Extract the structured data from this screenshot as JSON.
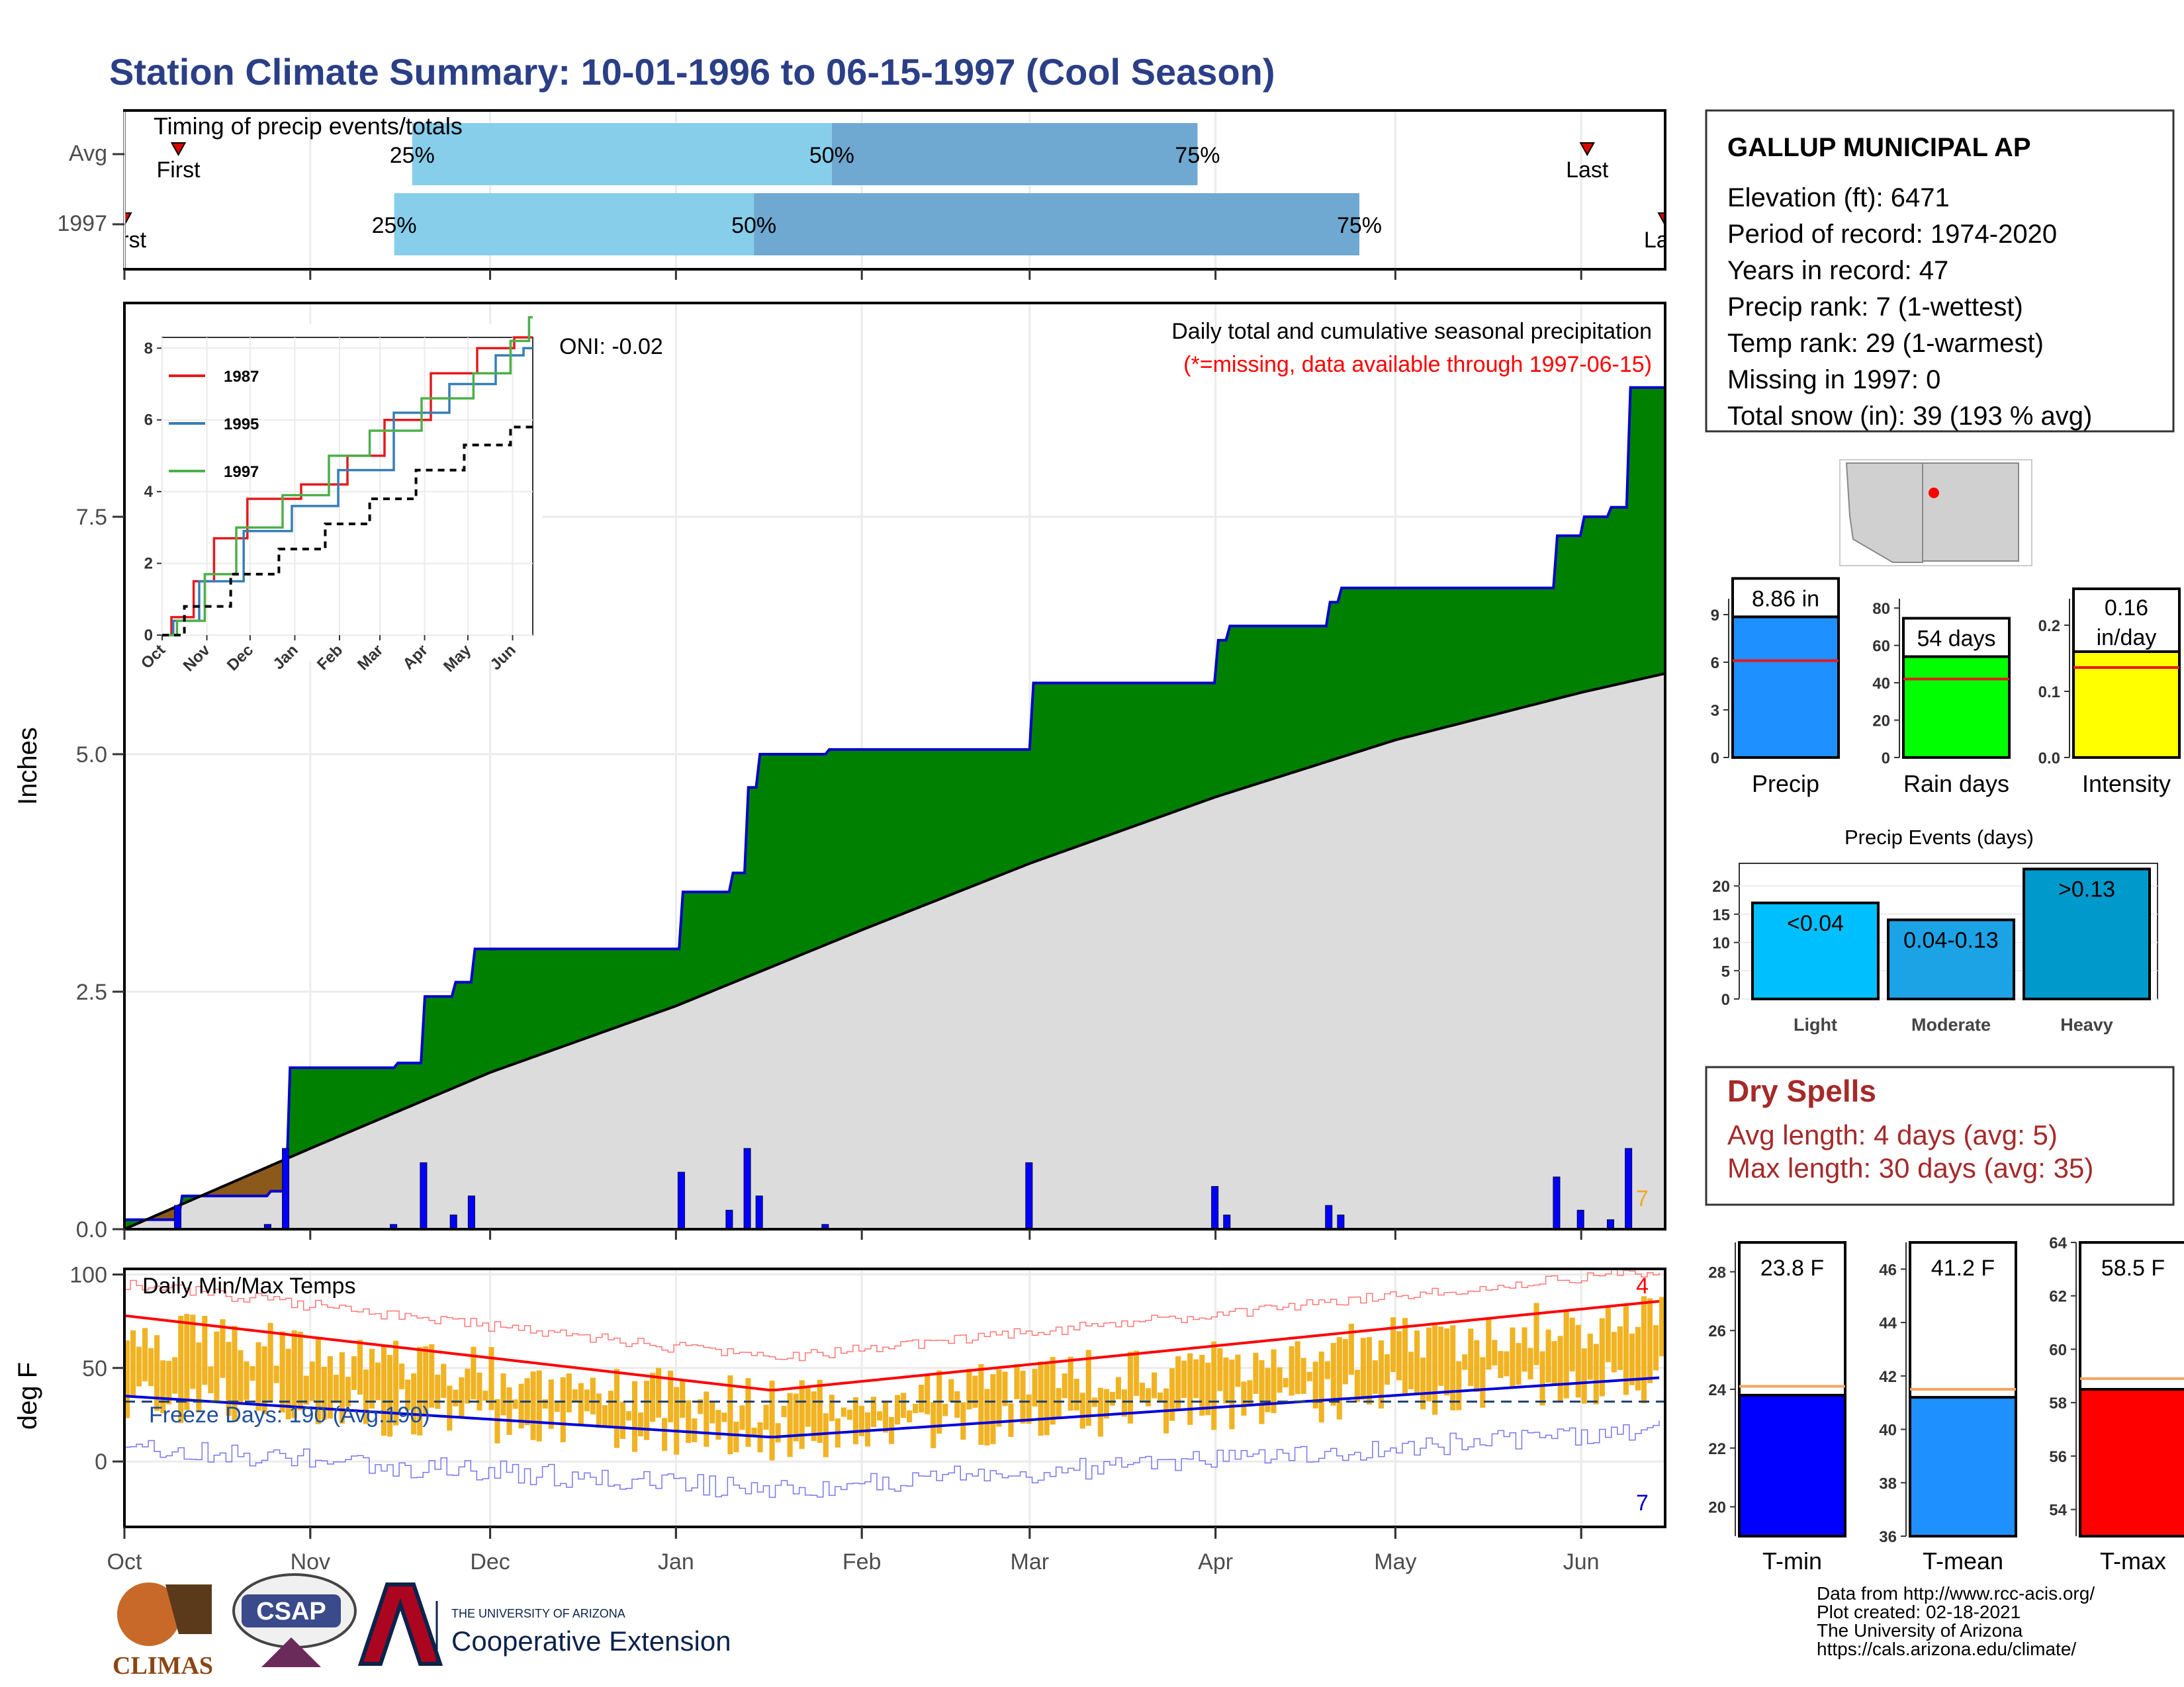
{
  "title": "Station Climate Summary: 10-01-1996 to 06-15-1997 (Cool Season)",
  "timing": {
    "title": "Timing of precip events/totals",
    "rows": [
      {
        "label": "Avg",
        "first": "First",
        "last": "Last",
        "p25": "25%",
        "p50": "50%",
        "p75": "75%",
        "first_date": "1996-10-10",
        "q25_date": "1996-11-18",
        "q50_date": "1997-01-27",
        "q75_date": "1997-03-29",
        "last_date": "1997-06-02"
      },
      {
        "label": "1997",
        "first": "First",
        "last": "Last",
        "p25": "25%",
        "p50": "50%",
        "p75": "75%",
        "first_date": "1996-10-01",
        "q25_date": "1996-11-15",
        "q50_date": "1997-01-14",
        "q75_date": "1997-04-25",
        "last_date": "1997-06-15"
      }
    ]
  },
  "precip": {
    "ylabel": "Inches",
    "yticks": [
      "0.0",
      "2.5",
      "5.0",
      "7.5"
    ],
    "note1": "Daily total and cumulative seasonal precipitation",
    "note2": "(*=missing, data available through 1997-06-15)",
    "oni": "ONI: -0.02",
    "count_label": "7"
  },
  "inset": {
    "yticks": [
      "0",
      "2",
      "4",
      "6",
      "8"
    ],
    "months": [
      "Oct",
      "Nov",
      "Dec",
      "Jan",
      "Feb",
      "Mar",
      "Apr",
      "May",
      "Jun"
    ],
    "legend": [
      {
        "name": "1987",
        "color": "#e41a1c"
      },
      {
        "name": "1995",
        "color": "#377eb8"
      },
      {
        "name": "1997",
        "color": "#4daf4a"
      }
    ]
  },
  "temps": {
    "ylabel": "deg F",
    "yticks": [
      "0",
      "50",
      "100"
    ],
    "label": "Daily Min/Max Temps",
    "freeze": "Freeze Days: 190 (Avg:190)",
    "count_top": "4",
    "count_bottom": "7"
  },
  "months": [
    "Oct",
    "Nov",
    "Dec",
    "Jan",
    "Feb",
    "Mar",
    "Apr",
    "May",
    "Jun"
  ],
  "station": {
    "name": "GALLUP MUNICIPAL AP",
    "lines": [
      "Elevation (ft): 6471",
      "Period of record: 1974-2020",
      "Years in record: 47",
      "Precip rank: 7 (1-wettest)",
      "Temp rank: 29 (1-warmest)",
      "Missing in 1997: 0",
      "Total snow (in): 39 (193 % avg)"
    ]
  },
  "summary_bars": [
    {
      "name": "Precip",
      "value_label": "8.86 in",
      "yticks": [
        "0",
        "3",
        "6",
        "9"
      ],
      "color": "#1e90ff"
    },
    {
      "name": "Rain days",
      "value_label": "54 days",
      "yticks": [
        "0",
        "20",
        "40",
        "60",
        "80"
      ],
      "color": "#00ff00"
    },
    {
      "name": "Intensity",
      "value_label": "0.16 in/day",
      "yticks": [
        "0.0",
        "0.1",
        "0.2"
      ],
      "color": "#ffff00"
    }
  ],
  "events": {
    "title": "Precip Events (days)",
    "yticks": [
      "0",
      "5",
      "10",
      "15",
      "20"
    ],
    "bars": [
      {
        "name": "Light",
        "label": "<0.04",
        "value": 17,
        "color": "#00bfff"
      },
      {
        "name": "Moderate",
        "label": "0.04-0.13",
        "value": 14,
        "color": "#1ca3e6"
      },
      {
        "name": "Heavy",
        "label": ">0.13",
        "value": 23,
        "color": "#0099cc"
      }
    ]
  },
  "dry_spells": {
    "title": "Dry Spells",
    "avg": "Avg length: 4 days (avg: 5)",
    "max": "Max length: 30 days (avg: 35)"
  },
  "temp_bars": [
    {
      "name": "T-min",
      "label": "23.8 F",
      "value": 23.8,
      "avg": 24.1,
      "min": 19,
      "max": 29,
      "yticks": [
        "20",
        "22",
        "24",
        "26",
        "28"
      ],
      "color": "#0000ff"
    },
    {
      "name": "T-mean",
      "label": "41.2 F",
      "value": 41.2,
      "avg": 41.5,
      "min": 36,
      "max": 47,
      "yticks": [
        "36",
        "38",
        "40",
        "42",
        "44",
        "46"
      ],
      "color": "#1e90ff"
    },
    {
      "name": "T-max",
      "label": "58.5 F",
      "value": 58.5,
      "avg": 58.9,
      "min": 53,
      "max": 64,
      "yticks": [
        "54",
        "56",
        "58",
        "60",
        "62",
        "64"
      ],
      "color": "#ff0000"
    }
  ],
  "footer": [
    "Data from http://www.rcc-acis.org/",
    "Plot created: 02-18-2021",
    "The University of Arizona",
    "https://cals.arizona.edu/climate/"
  ],
  "logos": {
    "climas": "CLIMAS",
    "csap": "CSAP",
    "uni_small": "THE UNIVERSITY OF ARIZONA",
    "coop": "Cooperative Extension"
  },
  "chart_data": {
    "type": "area",
    "x_range": [
      "1996-10-01",
      "1997-06-15"
    ],
    "series": [
      {
        "name": "1997",
        "x": [
          "1996-10-01",
          "1996-10-10",
          "1996-10-25",
          "1996-10-28",
          "1996-11-15",
          "1996-11-20",
          "1996-11-25",
          "1996-11-28",
          "1997-01-02",
          "1997-01-10",
          "1997-01-13",
          "1997-01-15",
          "1997-01-26",
          "1997-03-01",
          "1997-04-01",
          "1997-04-03",
          "1997-04-20",
          "1997-04-22",
          "1997-05-28",
          "1997-06-01",
          "1997-06-06",
          "1997-06-09",
          "1997-06-15"
        ],
        "y": [
          0.1,
          0.35,
          0.4,
          1.7,
          1.75,
          2.45,
          2.6,
          2.95,
          3.55,
          3.75,
          4.65,
          5.0,
          5.05,
          5.75,
          6.2,
          6.35,
          6.6,
          6.75,
          7.3,
          7.5,
          7.6,
          8.86,
          8.86
        ]
      },
      {
        "name": "Avg",
        "x": [
          "1996-10-01",
          "1996-11-01",
          "1996-12-01",
          "1997-01-01",
          "1997-02-01",
          "1997-03-01",
          "1997-04-01",
          "1997-05-01",
          "1997-06-01",
          "1997-06-15"
        ],
        "y": [
          0.0,
          0.85,
          1.65,
          2.35,
          3.15,
          3.85,
          4.55,
          5.15,
          5.65,
          5.85
        ]
      }
    ]
  }
}
